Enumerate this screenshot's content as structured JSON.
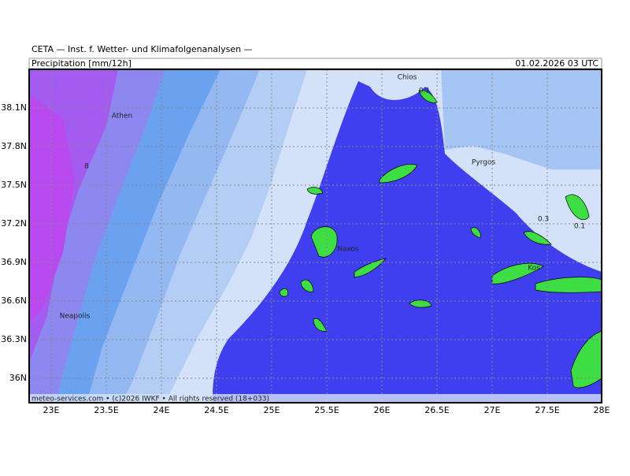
{
  "header": {
    "title": "CETA — Inst. f. Wetter- und Klimafolgenanalysen —",
    "variable": "Precipitation [mm/12h]",
    "datetime": "01.02.2026 03 UTC"
  },
  "axes": {
    "lon_labels": [
      "23E",
      "23.5E",
      "24E",
      "24.5E",
      "25E",
      "25.5E",
      "26E",
      "26.5E",
      "27E",
      "27.5E",
      "28E"
    ],
    "lat_labels": [
      "38.1N",
      "37.8N",
      "37.5N",
      "37.2N",
      "36.9N",
      "36.6N",
      "36.3N",
      "36N"
    ]
  },
  "places": [
    "Chios",
    "Athen",
    "Pyrgos",
    "Naxos",
    "Kos",
    "Neapolis"
  ],
  "contour_labels": [
    "0.1",
    "8",
    "0.3",
    "0.1"
  ],
  "footer": "meteo-services.com • (c)2026 IWKF • All rights reserved (18+033)"
}
